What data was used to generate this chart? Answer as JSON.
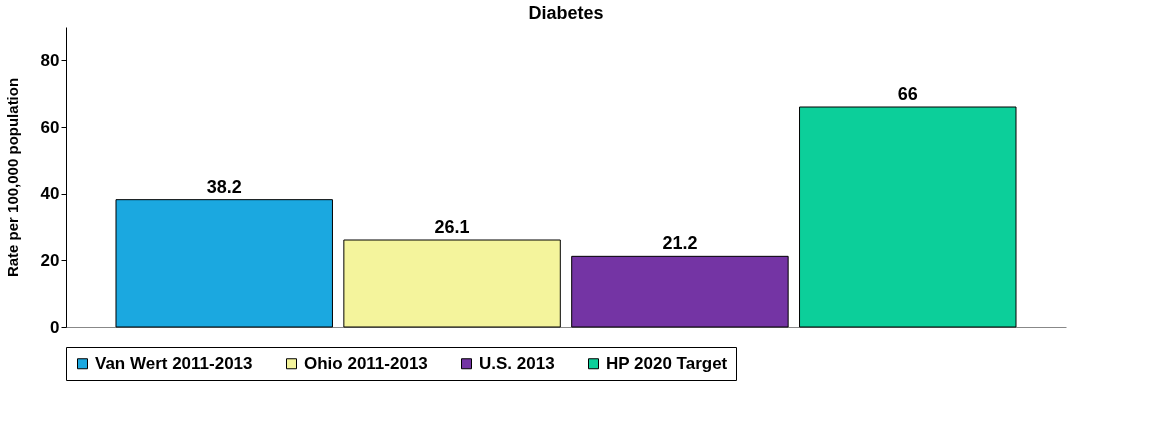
{
  "chart_data": {
    "type": "bar",
    "title": "Diabetes",
    "ylabel": "Rate per 100,000 population",
    "categories": [
      null
    ],
    "series": [
      {
        "name": "Van Wert 2011-2013",
        "color": "#1ba8e0",
        "values": [
          38.2
        ]
      },
      {
        "name": "Ohio 2011-2013",
        "color": "#f4f49c",
        "values": [
          26.1
        ]
      },
      {
        "name": "U.S. 2013",
        "color": "#7434a4",
        "values": [
          21.2
        ]
      },
      {
        "name": "HP 2020 Target",
        "color": "#0ccf9a",
        "values": [
          66
        ]
      }
    ],
    "ylim": [
      0,
      90
    ],
    "yticks": [
      0,
      20,
      40,
      60,
      80
    ],
    "data_labels": true,
    "legend": "bottom",
    "grid": false
  }
}
